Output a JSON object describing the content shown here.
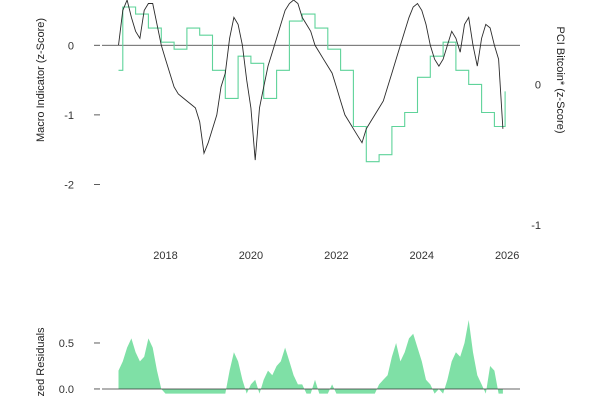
{
  "chart_data": [
    {
      "type": "line",
      "title": "",
      "ylabel_left": "Macro Indicator (z-Score)",
      "ylabel_right": "PCI Bitcoin* (z-Score)",
      "left_yticks": [
        "0",
        "-1",
        "-2"
      ],
      "left_ytick_values": [
        0,
        -1,
        -2
      ],
      "right_yticks": [
        "0",
        "-1"
      ],
      "right_ytick_values": [
        0,
        -1
      ],
      "xticks": [
        "2018",
        "2020",
        "2022",
        "2024",
        "2026"
      ],
      "xtick_values": [
        2018,
        2020,
        2022,
        2024,
        2026
      ],
      "xlim": [
        2016.7,
        2026.3
      ],
      "ylim_left": [
        -2.05,
        0.65
      ],
      "ylim_right": [
        -1.05,
        0.6
      ],
      "colors": {
        "macro": "#2b2b2b",
        "pci": "#5fd39a",
        "zero_line": "#333333"
      },
      "series": [
        {
          "key": "macro",
          "style": "line",
          "x": [
            2016.9,
            2017.0,
            2017.1,
            2017.2,
            2017.3,
            2017.4,
            2017.5,
            2017.6,
            2017.7,
            2017.8,
            2017.9,
            2018.0,
            2018.1,
            2018.2,
            2018.3,
            2018.4,
            2018.5,
            2018.6,
            2018.7,
            2018.8,
            2018.9,
            2019.0,
            2019.1,
            2019.2,
            2019.3,
            2019.4,
            2019.5,
            2019.6,
            2019.7,
            2019.8,
            2019.9,
            2020.0,
            2020.1,
            2020.2,
            2020.3,
            2020.4,
            2020.5,
            2020.6,
            2020.7,
            2020.8,
            2020.9,
            2021.0,
            2021.1,
            2021.2,
            2021.3,
            2021.4,
            2021.5,
            2021.6,
            2021.7,
            2021.8,
            2021.9,
            2022.0,
            2022.1,
            2022.2,
            2022.3,
            2022.4,
            2022.5,
            2022.6,
            2022.7,
            2022.8,
            2022.9,
            2023.0,
            2023.1,
            2023.2,
            2023.3,
            2023.4,
            2023.5,
            2023.6,
            2023.7,
            2023.8,
            2023.9,
            2024.0,
            2024.1,
            2024.2,
            2024.3,
            2024.4,
            2024.5,
            2024.6,
            2024.7,
            2024.8,
            2024.9,
            2025.0,
            2025.1,
            2025.2,
            2025.3,
            2025.4,
            2025.5,
            2025.6,
            2025.7,
            2025.8,
            2025.9
          ],
          "y": [
            0.0,
            0.5,
            0.65,
            0.4,
            0.2,
            0.1,
            0.5,
            0.6,
            0.6,
            0.3,
            0.0,
            -0.2,
            -0.4,
            -0.6,
            -0.7,
            -0.75,
            -0.8,
            -0.85,
            -0.9,
            -1.1,
            -1.55,
            -1.4,
            -1.2,
            -1.0,
            -0.6,
            -0.4,
            0.1,
            0.4,
            0.3,
            0.0,
            -0.5,
            -0.9,
            -1.65,
            -0.9,
            -0.6,
            -0.3,
            -0.1,
            0.1,
            0.3,
            0.5,
            0.6,
            0.65,
            0.6,
            0.4,
            0.3,
            0.2,
            0.0,
            -0.1,
            -0.2,
            -0.3,
            -0.4,
            -0.6,
            -0.8,
            -1.0,
            -1.1,
            -1.2,
            -1.3,
            -1.4,
            -1.2,
            -1.1,
            -1.0,
            -0.9,
            -0.8,
            -0.6,
            -0.4,
            -0.2,
            0.0,
            0.2,
            0.4,
            0.55,
            0.6,
            0.5,
            0.3,
            0.0,
            -0.2,
            -0.3,
            -0.2,
            0.0,
            0.2,
            0.1,
            -0.1,
            0.3,
            0.4,
            0.0,
            -0.3,
            0.1,
            0.3,
            0.25,
            0.0,
            -0.2,
            -1.2
          ]
        },
        {
          "key": "pci",
          "style": "step",
          "x": [
            2016.9,
            2017.0,
            2017.3,
            2017.6,
            2017.9,
            2018.2,
            2018.5,
            2018.8,
            2019.1,
            2019.4,
            2019.7,
            2020.0,
            2020.3,
            2020.6,
            2020.9,
            2021.2,
            2021.5,
            2021.8,
            2022.1,
            2022.4,
            2022.7,
            2023.0,
            2023.3,
            2023.6,
            2023.9,
            2024.2,
            2024.5,
            2024.8,
            2025.1,
            2025.4,
            2025.7,
            2025.95
          ],
          "y": [
            0.1,
            0.55,
            0.5,
            0.4,
            0.3,
            0.25,
            0.4,
            0.35,
            0.1,
            -0.1,
            0.2,
            0.15,
            -0.1,
            0.1,
            0.45,
            0.5,
            0.4,
            0.25,
            0.1,
            -0.3,
            -0.55,
            -0.5,
            -0.3,
            -0.2,
            0.05,
            0.2,
            0.3,
            0.1,
            0.0,
            -0.2,
            -0.3,
            -0.05
          ]
        }
      ]
    },
    {
      "type": "area",
      "title": "",
      "ylabel": "zed Residuals",
      "yticks": [
        "0.5",
        "0.0"
      ],
      "ytick_values": [
        0.5,
        0.0
      ],
      "xlim": [
        2016.7,
        2026.3
      ],
      "ylim": [
        -0.12,
        0.75
      ],
      "colors": {
        "fill": "#7fe0a6",
        "zero_line": "#333333"
      },
      "series": [
        {
          "key": "residuals",
          "x": [
            2016.9,
            2017.0,
            2017.1,
            2017.2,
            2017.3,
            2017.4,
            2017.5,
            2017.6,
            2017.7,
            2017.8,
            2017.9,
            2018.0,
            2018.1,
            2018.2,
            2018.3,
            2018.4,
            2018.5,
            2018.6,
            2018.7,
            2018.8,
            2018.9,
            2019.0,
            2019.1,
            2019.2,
            2019.3,
            2019.4,
            2019.5,
            2019.6,
            2019.7,
            2019.8,
            2019.9,
            2020.0,
            2020.1,
            2020.2,
            2020.3,
            2020.4,
            2020.5,
            2020.6,
            2020.7,
            2020.8,
            2020.9,
            2021.0,
            2021.1,
            2021.2,
            2021.3,
            2021.4,
            2021.5,
            2021.6,
            2021.7,
            2021.8,
            2021.9,
            2022.0,
            2022.1,
            2022.2,
            2022.3,
            2022.4,
            2022.5,
            2022.6,
            2022.7,
            2022.8,
            2022.9,
            2023.0,
            2023.1,
            2023.2,
            2023.3,
            2023.4,
            2023.5,
            2023.6,
            2023.7,
            2023.8,
            2023.9,
            2024.0,
            2024.1,
            2024.2,
            2024.3,
            2024.4,
            2024.5,
            2024.6,
            2024.7,
            2024.8,
            2024.9,
            2025.0,
            2025.1,
            2025.2,
            2025.3,
            2025.4,
            2025.5,
            2025.6,
            2025.7,
            2025.8,
            2025.9
          ],
          "y": [
            0.2,
            0.3,
            0.45,
            0.55,
            0.4,
            0.3,
            0.35,
            0.55,
            0.45,
            0.2,
            0.0,
            -0.05,
            -0.05,
            -0.05,
            -0.05,
            -0.05,
            -0.05,
            -0.05,
            -0.05,
            -0.05,
            -0.05,
            -0.05,
            -0.05,
            -0.05,
            -0.05,
            -0.05,
            0.2,
            0.4,
            0.3,
            0.1,
            -0.05,
            0.05,
            0.1,
            -0.05,
            0.1,
            0.2,
            0.15,
            0.25,
            0.3,
            0.45,
            0.3,
            0.15,
            0.05,
            0.05,
            -0.05,
            -0.05,
            0.1,
            -0.05,
            -0.05,
            -0.05,
            0.05,
            -0.05,
            -0.05,
            -0.05,
            -0.05,
            -0.05,
            -0.05,
            -0.05,
            -0.05,
            -0.05,
            -0.05,
            0.05,
            0.1,
            0.15,
            0.35,
            0.5,
            0.3,
            0.4,
            0.55,
            0.6,
            0.45,
            0.3,
            0.1,
            0.05,
            -0.05,
            0.0,
            -0.05,
            0.1,
            0.3,
            0.4,
            0.35,
            0.5,
            0.75,
            0.4,
            0.15,
            0.05,
            -0.05,
            0.25,
            0.2,
            -0.05,
            -0.05
          ]
        }
      ]
    }
  ]
}
